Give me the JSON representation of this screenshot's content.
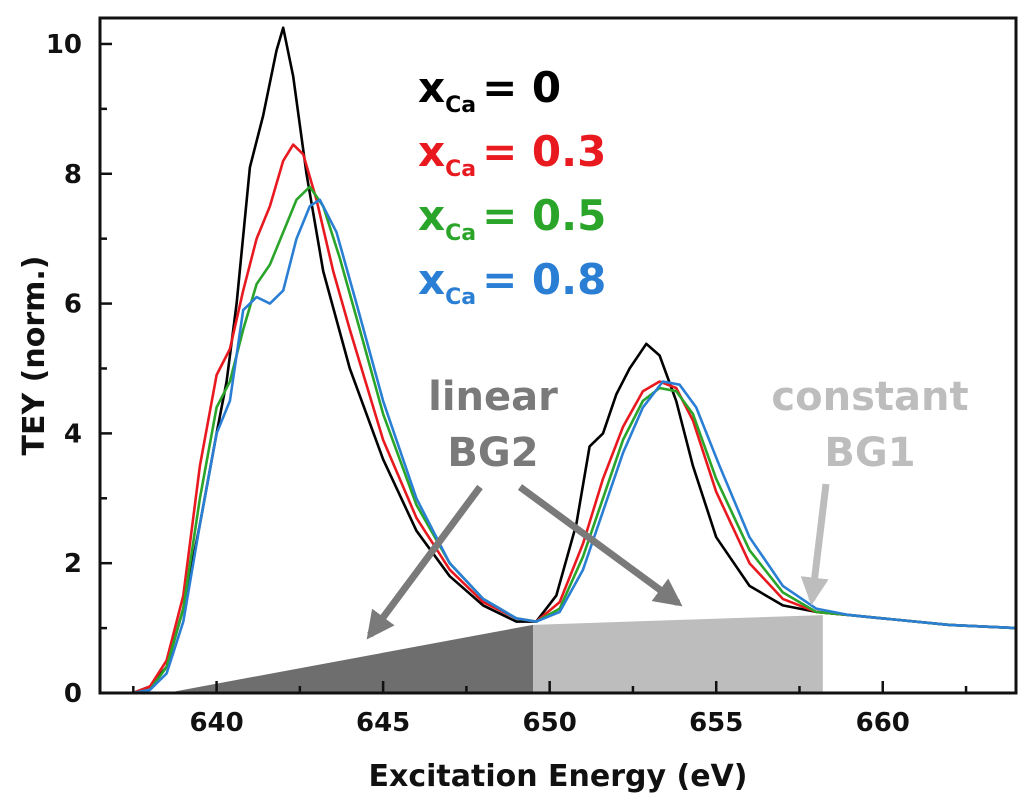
{
  "chart_data": {
    "type": "line",
    "xlabel": "Excitation Energy (eV)",
    "ylabel": "TEY (norm.)",
    "xlim": [
      636.5,
      664
    ],
    "ylim": [
      0,
      10.4
    ],
    "xticks": [
      640,
      645,
      650,
      655,
      660
    ],
    "yticks": [
      0,
      2,
      4,
      6,
      8,
      10
    ],
    "grid": false,
    "legend": {
      "placement": "top-center",
      "entries": [
        {
          "prefix": "x",
          "sub": "Ca",
          "value": "= 0",
          "color": "#000000"
        },
        {
          "prefix": "x",
          "sub": "Ca",
          "value": "= 0.3",
          "color": "#e8191f"
        },
        {
          "prefix": "x",
          "sub": "Ca",
          "value": "= 0.5",
          "color": "#2aa52a"
        },
        {
          "prefix": "x",
          "sub": "Ca",
          "value": "= 0.8",
          "color": "#2a7fd4"
        }
      ]
    },
    "background_regions": [
      {
        "kind": "linear",
        "x": [
          638.5,
          649.5
        ],
        "y": [
          0,
          1.05
        ],
        "color": "#6e6e6e"
      },
      {
        "kind": "constant",
        "x": [
          649.5,
          658.2
        ],
        "y": [
          1.05,
          1.2
        ],
        "color": "#bdbdbd"
      }
    ],
    "annotations": [
      {
        "lines": [
          "linear",
          "BG2"
        ],
        "color": "#7a7a7a"
      },
      {
        "lines": [
          "constant",
          "BG1"
        ],
        "color": "#bdbdbd"
      }
    ],
    "series": [
      {
        "color": "#000000",
        "x": [
          636.5,
          637.5,
          638.0,
          638.5,
          639.0,
          639.5,
          640.0,
          640.3,
          640.6,
          641.0,
          641.4,
          641.8,
          642.0,
          642.3,
          642.7,
          643.2,
          644.0,
          645.0,
          646.0,
          647.0,
          648.0,
          649.0,
          649.6,
          650.2,
          650.8,
          651.2,
          651.6,
          652.0,
          652.4,
          652.9,
          653.3,
          653.8,
          654.3,
          655.0,
          656.0,
          657.0,
          658.0,
          659.0,
          660.0,
          662.0,
          664.0
        ],
        "y": [
          0,
          0,
          0.1,
          0.4,
          1.3,
          2.6,
          4.0,
          4.8,
          6.0,
          8.1,
          8.9,
          9.9,
          10.25,
          9.5,
          8.0,
          6.5,
          5.0,
          3.6,
          2.5,
          1.8,
          1.35,
          1.1,
          1.1,
          1.5,
          2.6,
          3.8,
          4.0,
          4.6,
          5.0,
          5.38,
          5.2,
          4.5,
          3.5,
          2.4,
          1.65,
          1.35,
          1.25,
          1.2,
          1.15,
          1.05,
          1.0
        ]
      },
      {
        "color": "#e8191f",
        "x": [
          636.5,
          637.5,
          638.0,
          638.5,
          639.0,
          639.5,
          640.0,
          640.4,
          640.8,
          641.2,
          641.6,
          642.0,
          642.3,
          642.6,
          643.0,
          643.5,
          644.0,
          645.0,
          646.0,
          647.0,
          648.0,
          649.0,
          649.6,
          650.3,
          651.0,
          651.6,
          652.2,
          652.8,
          653.3,
          653.8,
          654.3,
          655.0,
          656.0,
          657.0,
          658.0,
          659.0,
          660.0,
          662.0,
          664.0
        ],
        "y": [
          0,
          0,
          0.1,
          0.5,
          1.5,
          3.5,
          4.9,
          5.3,
          6.2,
          7.0,
          7.5,
          8.2,
          8.45,
          8.3,
          7.6,
          6.5,
          5.6,
          3.9,
          2.7,
          1.9,
          1.4,
          1.15,
          1.1,
          1.4,
          2.3,
          3.3,
          4.1,
          4.65,
          4.8,
          4.7,
          4.2,
          3.1,
          2.0,
          1.45,
          1.25,
          1.2,
          1.15,
          1.05,
          1.0
        ]
      },
      {
        "color": "#2aa52a",
        "x": [
          636.5,
          637.5,
          638.0,
          638.5,
          639.0,
          639.5,
          640.0,
          640.4,
          640.8,
          641.2,
          641.6,
          642.0,
          642.4,
          642.8,
          643.2,
          643.7,
          644.3,
          645.0,
          646.0,
          647.0,
          648.0,
          649.0,
          649.6,
          650.3,
          651.0,
          651.6,
          652.2,
          652.8,
          653.3,
          653.8,
          654.3,
          655.0,
          656.0,
          657.0,
          658.0,
          659.0,
          660.0,
          662.0,
          664.0
        ],
        "y": [
          0,
          0,
          0.05,
          0.4,
          1.3,
          3.0,
          4.4,
          4.8,
          5.6,
          6.3,
          6.6,
          7.1,
          7.6,
          7.8,
          7.5,
          6.7,
          5.6,
          4.3,
          2.9,
          2.0,
          1.45,
          1.15,
          1.1,
          1.3,
          2.1,
          3.0,
          3.9,
          4.5,
          4.7,
          4.65,
          4.3,
          3.3,
          2.2,
          1.55,
          1.25,
          1.2,
          1.15,
          1.05,
          1.0
        ]
      },
      {
        "color": "#2a7fd4",
        "x": [
          636.5,
          637.5,
          638.0,
          638.5,
          639.0,
          639.5,
          640.0,
          640.4,
          640.8,
          641.2,
          641.6,
          642.0,
          642.4,
          642.8,
          643.1,
          643.6,
          644.2,
          645.0,
          646.0,
          647.0,
          648.0,
          649.0,
          649.6,
          650.3,
          651.0,
          651.6,
          652.2,
          652.8,
          653.4,
          653.9,
          654.4,
          655.1,
          656.0,
          657.0,
          658.0,
          659.0,
          660.0,
          662.0,
          664.0
        ],
        "y": [
          0,
          0,
          0.05,
          0.3,
          1.1,
          2.6,
          4.0,
          4.5,
          5.9,
          6.1,
          6.0,
          6.2,
          7.0,
          7.5,
          7.6,
          7.1,
          6.0,
          4.5,
          3.0,
          2.0,
          1.45,
          1.15,
          1.1,
          1.25,
          1.9,
          2.8,
          3.7,
          4.4,
          4.8,
          4.75,
          4.4,
          3.5,
          2.4,
          1.65,
          1.3,
          1.2,
          1.15,
          1.05,
          1.0
        ]
      }
    ]
  }
}
